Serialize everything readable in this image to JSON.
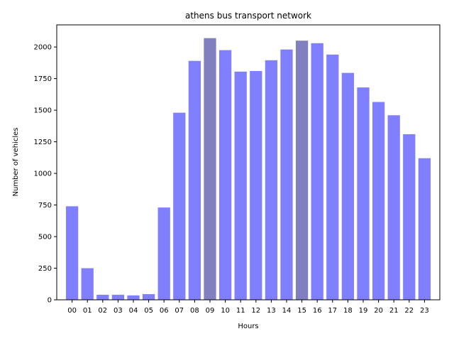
{
  "chart_data": {
    "type": "bar",
    "title": "athens bus transport network",
    "xlabel": "Hours",
    "ylabel": "Number of vehicles",
    "categories": [
      "00",
      "01",
      "02",
      "03",
      "04",
      "05",
      "06",
      "07",
      "08",
      "09",
      "10",
      "11",
      "12",
      "13",
      "14",
      "15",
      "16",
      "17",
      "18",
      "19",
      "20",
      "21",
      "22",
      "23"
    ],
    "values": [
      740,
      250,
      40,
      40,
      35,
      45,
      730,
      1480,
      1890,
      2070,
      1975,
      1805,
      1810,
      1895,
      1980,
      2050,
      2030,
      1940,
      1795,
      1680,
      1565,
      1460,
      1310,
      1120
    ],
    "ylim": [
      0,
      2175
    ],
    "yticks": [
      0,
      250,
      500,
      750,
      1000,
      1250,
      1500,
      1750,
      2000
    ],
    "ytick_labels": [
      "0",
      "250",
      "500",
      "750",
      "1000",
      "1250",
      "1500",
      "1750",
      "2000"
    ],
    "grid": false,
    "colors": {
      "bar": "#8080ff",
      "highlight": "#8080c0",
      "axis": "#000000"
    },
    "highlighted_categories": [
      "09",
      "15"
    ]
  }
}
